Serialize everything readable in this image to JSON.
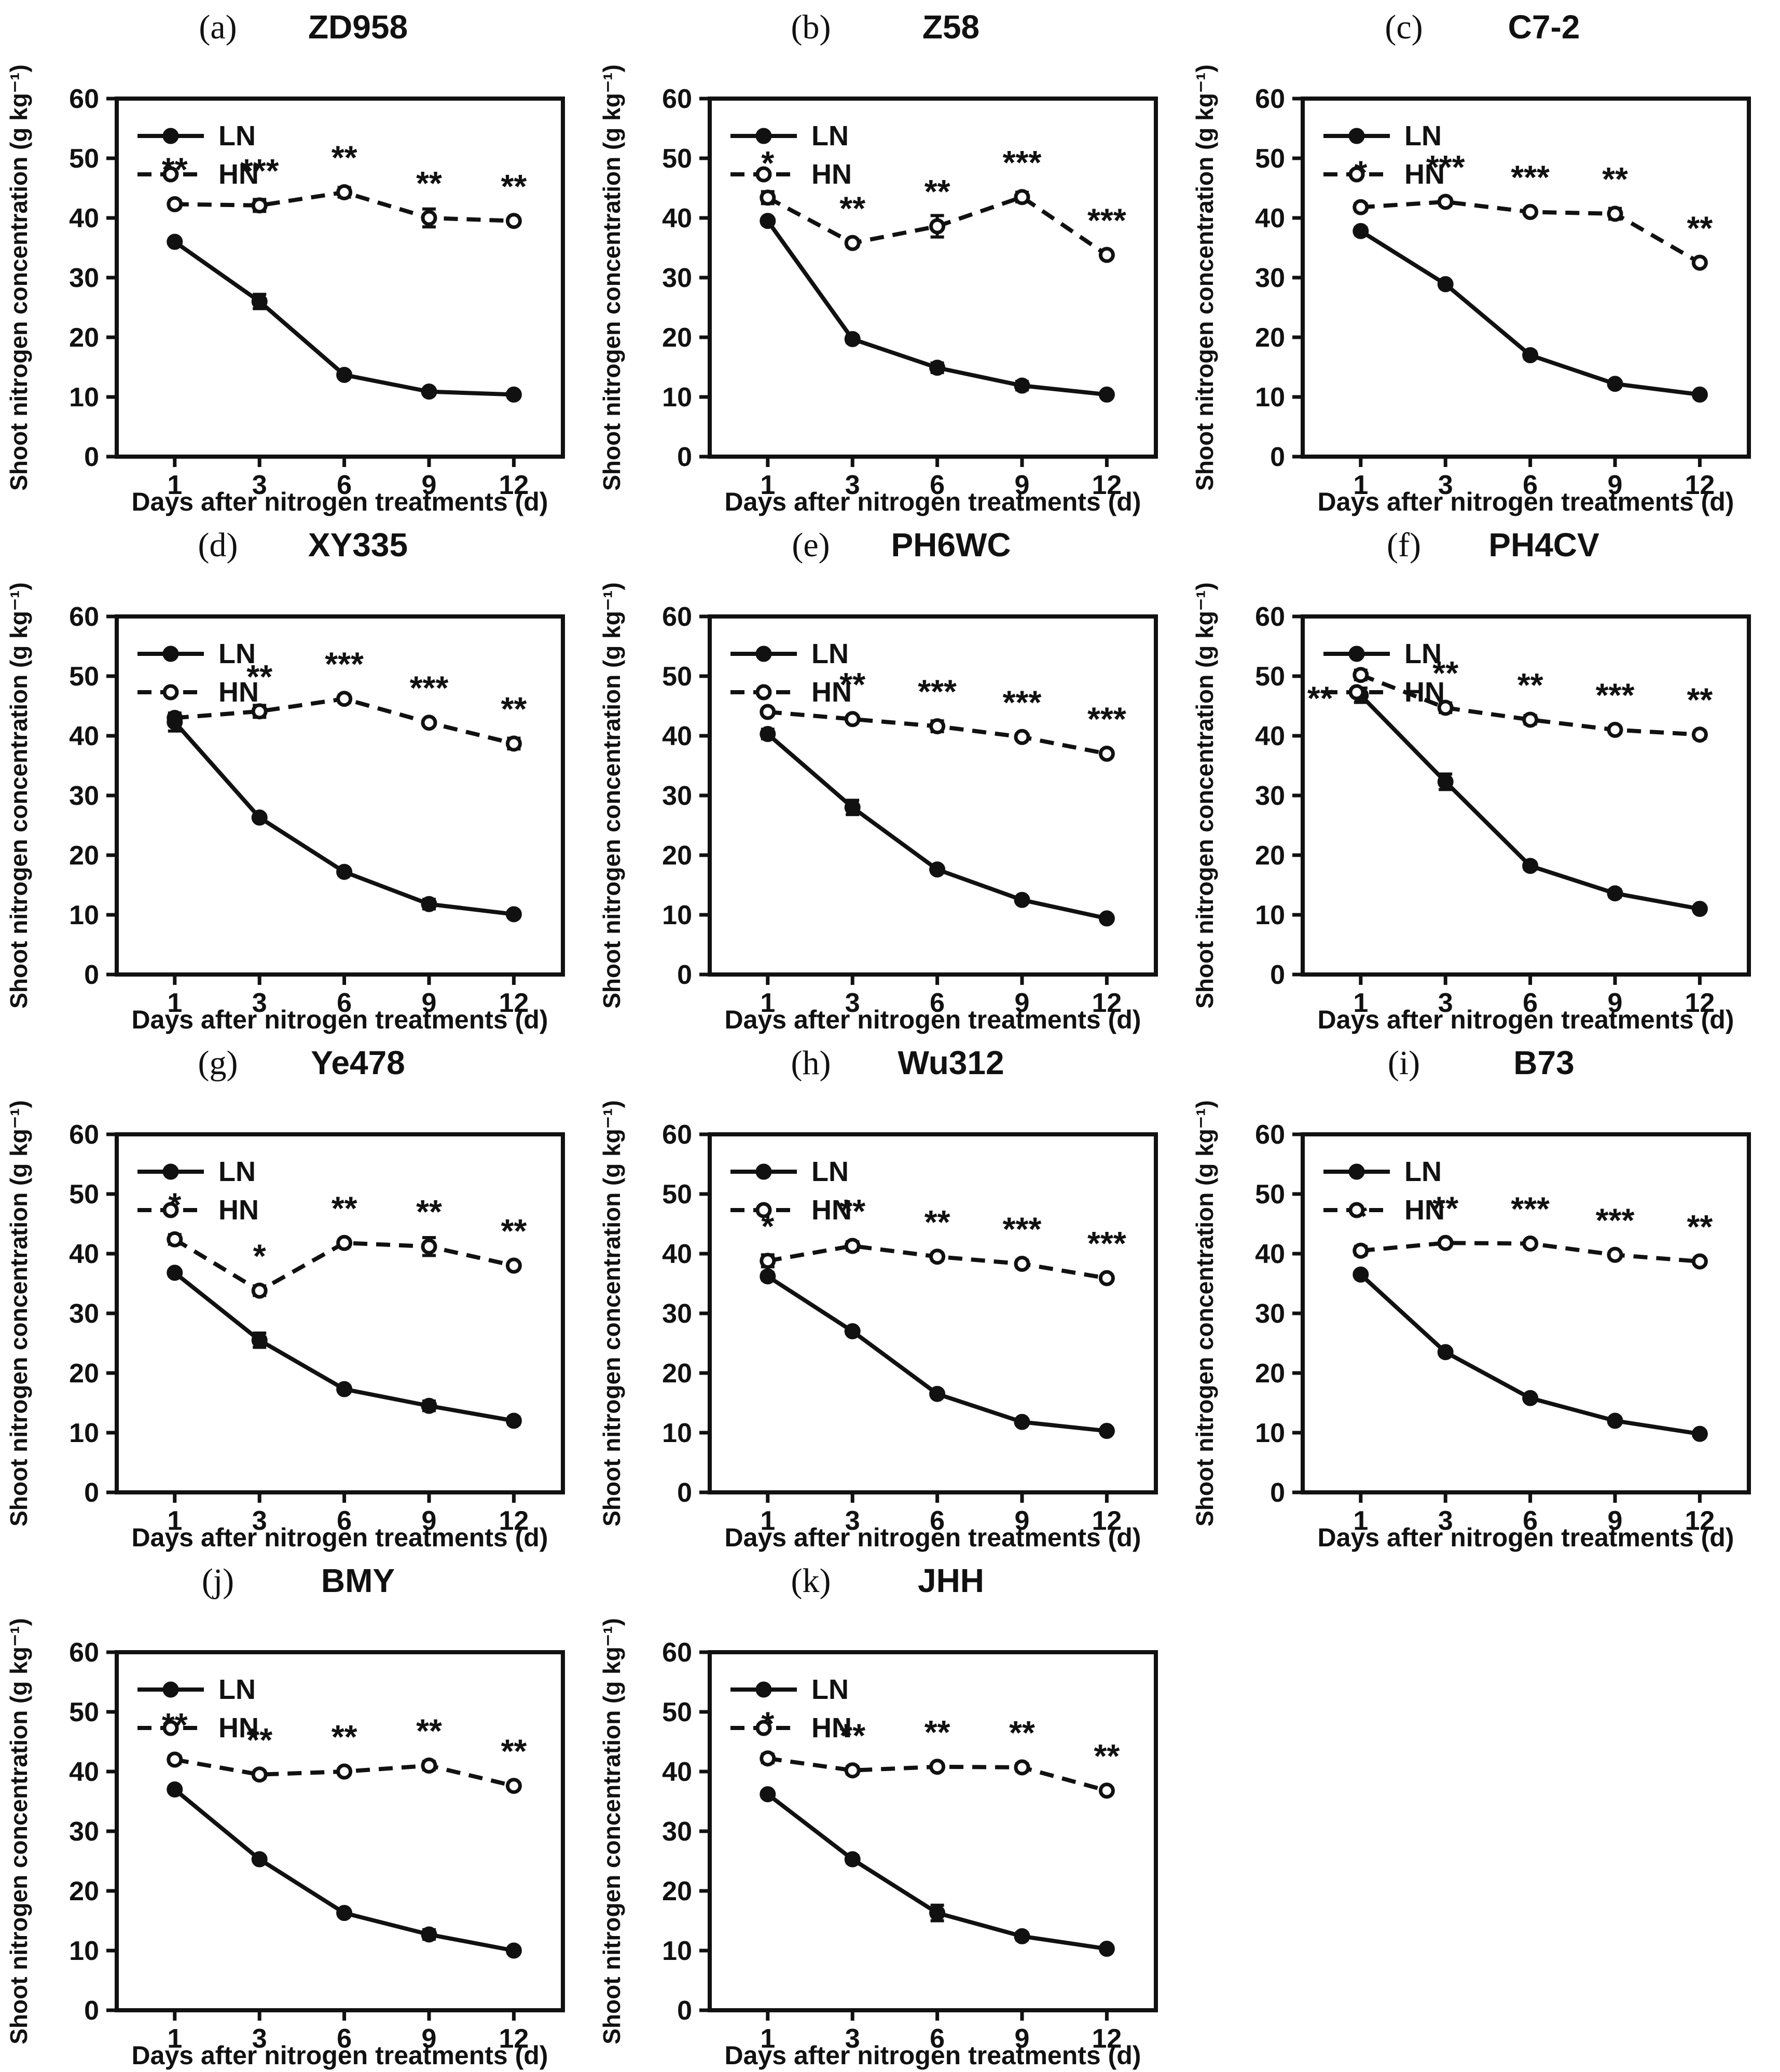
{
  "figure": {
    "ink_color": "#111111",
    "background": "#ffffff",
    "y_axis_label": "Shoot nitrogen concentration (g kg⁻¹)",
    "x_axis_label": "Days after nitrogen treatments (d)",
    "y_tick_labels": [
      "0",
      "10",
      "20",
      "30",
      "40",
      "50",
      "60"
    ],
    "y_tick_values": [
      0,
      10,
      20,
      30,
      40,
      50,
      60
    ],
    "x_tick_labels": [
      "1",
      "3",
      "6",
      "9",
      "12"
    ],
    "legend": [
      {
        "name": "LN",
        "marker": "filled-circle",
        "line": "solid"
      },
      {
        "name": "HN",
        "marker": "open-circle",
        "line": "dashed"
      }
    ]
  },
  "chart_data": [
    {
      "type": "line",
      "letter": "(a)",
      "title": "ZD958",
      "x": [
        1,
        3,
        6,
        9,
        12
      ],
      "ylim": [
        0,
        60
      ],
      "xlabel": "Days after nitrogen treatments (d)",
      "ylabel": "Shoot nitrogen concentration (g kg⁻¹)",
      "series": [
        {
          "name": "LN",
          "line": "solid",
          "marker": "filled-circle",
          "values": [
            36.0,
            26.0,
            13.7,
            10.9,
            10.4
          ],
          "errors": [
            0.5,
            1.2,
            0.5,
            0.5,
            0.5
          ]
        },
        {
          "name": "HN",
          "line": "dashed",
          "marker": "open-circle",
          "values": [
            42.3,
            42.1,
            44.3,
            40.0,
            39.5
          ],
          "errors": [
            0.6,
            1.0,
            0.8,
            1.5,
            0.5
          ]
        }
      ],
      "significance": [
        "**",
        "***",
        "**",
        "**",
        "**"
      ]
    },
    {
      "type": "line",
      "letter": "(b)",
      "title": "Z58",
      "x": [
        1,
        3,
        6,
        9,
        12
      ],
      "ylim": [
        0,
        60
      ],
      "xlabel": "Days after nitrogen treatments (d)",
      "ylabel": "Shoot nitrogen concentration (g kg⁻¹)",
      "series": [
        {
          "name": "LN",
          "line": "solid",
          "marker": "filled-circle",
          "values": [
            39.5,
            19.7,
            14.9,
            11.9,
            10.4
          ],
          "errors": [
            0.5,
            0.6,
            0.8,
            0.7,
            0.5
          ]
        },
        {
          "name": "HN",
          "line": "dashed",
          "marker": "open-circle",
          "values": [
            43.4,
            35.8,
            38.6,
            43.5,
            33.8
          ],
          "errors": [
            1.0,
            0.6,
            1.8,
            0.8,
            0.5
          ]
        }
      ],
      "significance": [
        "*",
        "**",
        "**",
        "***",
        "***"
      ]
    },
    {
      "type": "line",
      "letter": "(c)",
      "title": "C7-2",
      "x": [
        1,
        3,
        6,
        9,
        12
      ],
      "ylim": [
        0,
        60
      ],
      "xlabel": "Days after nitrogen treatments (d)",
      "ylabel": "Shoot nitrogen concentration (g kg⁻¹)",
      "series": [
        {
          "name": "LN",
          "line": "solid",
          "marker": "filled-circle",
          "values": [
            37.8,
            28.9,
            17.0,
            12.2,
            10.4
          ],
          "errors": [
            0.6,
            0.5,
            0.6,
            0.5,
            0.5
          ]
        },
        {
          "name": "HN",
          "line": "dashed",
          "marker": "open-circle",
          "values": [
            41.8,
            42.7,
            41.0,
            40.7,
            32.5
          ],
          "errors": [
            0.6,
            0.6,
            0.5,
            0.9,
            0.5
          ]
        }
      ],
      "significance": [
        "*",
        "***",
        "***",
        "**",
        "**"
      ]
    },
    {
      "type": "line",
      "letter": "(d)",
      "title": "XY335",
      "x": [
        1,
        3,
        6,
        9,
        12
      ],
      "ylim": [
        0,
        60
      ],
      "xlabel": "Days after nitrogen treatments (d)",
      "ylabel": "Shoot nitrogen concentration (g kg⁻¹)",
      "series": [
        {
          "name": "LN",
          "line": "solid",
          "marker": "filled-circle",
          "values": [
            42.3,
            26.3,
            17.2,
            11.8,
            10.1
          ],
          "errors": [
            1.5,
            0.5,
            0.5,
            0.8,
            0.5
          ]
        },
        {
          "name": "HN",
          "line": "dashed",
          "marker": "open-circle",
          "values": [
            43.0,
            44.1,
            46.2,
            42.2,
            38.7
          ],
          "errors": [
            0.8,
            1.0,
            0.6,
            0.5,
            0.9
          ]
        }
      ],
      "significance": [
        "",
        "**",
        "***",
        "***",
        "**"
      ]
    },
    {
      "type": "line",
      "letter": "(e)",
      "title": "PH6WC",
      "x": [
        1,
        3,
        6,
        9,
        12
      ],
      "ylim": [
        0,
        60
      ],
      "xlabel": "Days after nitrogen treatments (d)",
      "ylabel": "Shoot nitrogen concentration (g kg⁻¹)",
      "series": [
        {
          "name": "LN",
          "line": "solid",
          "marker": "filled-circle",
          "values": [
            40.3,
            28.0,
            17.6,
            12.5,
            9.4
          ],
          "errors": [
            0.8,
            1.2,
            0.5,
            0.5,
            0.5
          ]
        },
        {
          "name": "HN",
          "line": "dashed",
          "marker": "open-circle",
          "values": [
            44.0,
            42.8,
            41.6,
            39.8,
            37.0
          ],
          "errors": [
            0.5,
            0.5,
            0.9,
            0.5,
            0.5
          ]
        }
      ],
      "significance": [
        "",
        "**",
        "***",
        "***",
        "***"
      ]
    },
    {
      "type": "line",
      "letter": "(f)",
      "title": "PH4CV",
      "x": [
        1,
        3,
        6,
        9,
        12
      ],
      "ylim": [
        0,
        60
      ],
      "xlabel": "Days after nitrogen treatments (d)",
      "ylabel": "Shoot nitrogen concentration (g kg⁻¹)",
      "series": [
        {
          "name": "LN",
          "line": "solid",
          "marker": "filled-circle",
          "values": [
            46.8,
            32.3,
            18.2,
            13.6,
            11.0
          ],
          "errors": [
            1.2,
            1.3,
            0.6,
            0.6,
            0.5
          ]
        },
        {
          "name": "HN",
          "line": "dashed",
          "marker": "open-circle",
          "values": [
            50.2,
            44.7,
            42.7,
            41.0,
            40.2
          ],
          "errors": [
            0.8,
            0.8,
            0.7,
            0.5,
            0.6
          ]
        }
      ],
      "significance": [
        "**",
        "**",
        "**",
        "***",
        "**"
      ],
      "sig_offsets": {
        "0": {
          "dx": -78,
          "dy": 112
        }
      }
    },
    {
      "type": "line",
      "letter": "(g)",
      "title": "Ye478",
      "x": [
        1,
        3,
        6,
        9,
        12
      ],
      "ylim": [
        0,
        60
      ],
      "xlabel": "Days after nitrogen treatments (d)",
      "ylabel": "Shoot nitrogen concentration (g kg⁻¹)",
      "series": [
        {
          "name": "LN",
          "line": "solid",
          "marker": "filled-circle",
          "values": [
            36.8,
            25.5,
            17.3,
            14.5,
            12.0
          ],
          "errors": [
            0.5,
            1.2,
            0.5,
            0.8,
            0.6
          ]
        },
        {
          "name": "HN",
          "line": "dashed",
          "marker": "open-circle",
          "values": [
            42.4,
            33.8,
            41.8,
            41.2,
            38.0
          ],
          "errors": [
            0.8,
            0.8,
            0.6,
            1.5,
            0.5
          ]
        }
      ],
      "significance": [
        "*",
        "*",
        "**",
        "**",
        "**"
      ]
    },
    {
      "type": "line",
      "letter": "(h)",
      "title": "Wu312",
      "x": [
        1,
        3,
        6,
        9,
        12
      ],
      "ylim": [
        0,
        60
      ],
      "xlabel": "Days after nitrogen treatments (d)",
      "ylabel": "Shoot nitrogen concentration (g kg⁻¹)",
      "series": [
        {
          "name": "LN",
          "line": "solid",
          "marker": "filled-circle",
          "values": [
            36.2,
            27.0,
            16.5,
            11.8,
            10.3
          ],
          "errors": [
            0.6,
            0.5,
            0.5,
            0.5,
            0.5
          ]
        },
        {
          "name": "HN",
          "line": "dashed",
          "marker": "open-circle",
          "values": [
            38.8,
            41.3,
            39.5,
            38.3,
            35.9
          ],
          "errors": [
            1.0,
            0.7,
            0.6,
            0.6,
            0.5
          ]
        }
      ],
      "significance": [
        "*",
        "**",
        "**",
        "***",
        "***"
      ]
    },
    {
      "type": "line",
      "letter": "(i)",
      "title": "B73",
      "x": [
        1,
        3,
        6,
        9,
        12
      ],
      "ylim": [
        0,
        60
      ],
      "xlabel": "Days after nitrogen treatments (d)",
      "ylabel": "Shoot nitrogen concentration (g kg⁻¹)",
      "series": [
        {
          "name": "LN",
          "line": "solid",
          "marker": "filled-circle",
          "values": [
            36.5,
            23.5,
            15.8,
            12.0,
            9.8
          ],
          "errors": [
            0.5,
            0.5,
            0.5,
            0.5,
            0.5
          ]
        },
        {
          "name": "HN",
          "line": "dashed",
          "marker": "open-circle",
          "values": [
            40.5,
            41.8,
            41.7,
            39.8,
            38.7
          ],
          "errors": [
            0.7,
            0.5,
            0.5,
            0.5,
            0.5
          ]
        }
      ],
      "significance": [
        "*",
        "**",
        "***",
        "***",
        "**"
      ]
    },
    {
      "type": "line",
      "letter": "(j)",
      "title": "BMY",
      "x": [
        1,
        3,
        6,
        9,
        12
      ],
      "ylim": [
        0,
        60
      ],
      "xlabel": "Days after nitrogen treatments (d)",
      "ylabel": "Shoot nitrogen concentration (g kg⁻¹)",
      "series": [
        {
          "name": "LN",
          "line": "solid",
          "marker": "filled-circle",
          "values": [
            37.0,
            25.3,
            16.3,
            12.7,
            10.0
          ],
          "errors": [
            0.5,
            0.5,
            0.5,
            0.8,
            0.5
          ]
        },
        {
          "name": "HN",
          "line": "dashed",
          "marker": "open-circle",
          "values": [
            42.0,
            39.5,
            40.0,
            41.0,
            37.6
          ],
          "errors": [
            0.6,
            0.6,
            0.5,
            0.7,
            0.5
          ]
        }
      ],
      "significance": [
        "**",
        "**",
        "**",
        "**",
        "**"
      ]
    },
    {
      "type": "line",
      "letter": "(k)",
      "title": "JHH",
      "x": [
        1,
        3,
        6,
        9,
        12
      ],
      "ylim": [
        0,
        60
      ],
      "xlabel": "Days after nitrogen treatments (d)",
      "ylabel": "Shoot nitrogen concentration (g kg⁻¹)",
      "series": [
        {
          "name": "LN",
          "line": "solid",
          "marker": "filled-circle",
          "values": [
            36.2,
            25.3,
            16.3,
            12.4,
            10.3
          ],
          "errors": [
            0.5,
            0.6,
            1.3,
            0.6,
            0.5
          ]
        },
        {
          "name": "HN",
          "line": "dashed",
          "marker": "open-circle",
          "values": [
            42.2,
            40.2,
            40.8,
            40.7,
            36.8
          ],
          "errors": [
            0.7,
            0.6,
            0.5,
            0.6,
            0.5
          ]
        }
      ],
      "significance": [
        "*",
        "**",
        "**",
        "**",
        "**"
      ]
    }
  ]
}
